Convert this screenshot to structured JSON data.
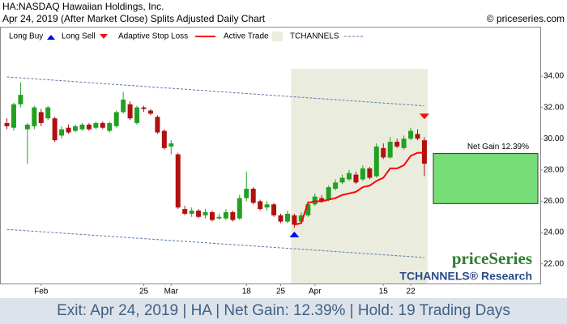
{
  "chart_data": {
    "type": "candlestick",
    "title": "HA:NASDAQ Hawaiian Holdings, Inc.",
    "subtitle": "Apr 24, 2019 (After Market Close)  Splits Adjusted Daily Chart",
    "source": "© priceseries.com",
    "legend": [
      "Long Buy",
      "Long Sell",
      "Adaptive Stop Loss",
      "Active Trade",
      "TCHANNELS"
    ],
    "watermark": "priceSeries",
    "brand": "TCHANNELS® Research",
    "footer": "Exit: Apr 24, 2019 | HA | Net Gain: 12.39% | Hold: 19 Trading Days",
    "categories": [
      null,
      null,
      null,
      null,
      null,
      "Feb",
      null,
      null,
      null,
      null,
      null,
      null,
      null,
      null,
      null,
      null,
      null,
      null,
      null,
      null,
      "25",
      null,
      null,
      null,
      "Mar",
      null,
      null,
      null,
      null,
      null,
      null,
      null,
      null,
      null,
      null,
      "18",
      null,
      null,
      null,
      null,
      "25",
      null,
      null,
      null,
      null,
      "Apr",
      null,
      null,
      null,
      null,
      null,
      null,
      null,
      null,
      null,
      "15",
      null,
      null,
      null,
      "22",
      null,
      null
    ],
    "open": [
      31.0,
      30.7,
      32.2,
      30.6,
      30.8,
      31.7,
      31.3,
      31.3,
      30.2,
      30.7,
      30.5,
      30.6,
      30.9,
      30.7,
      31.0,
      30.5,
      30.8,
      31.7,
      32.2,
      31.0,
      32.0,
      31.8,
      31.4,
      30.5,
      29.5,
      29.0,
      25.5,
      25.2,
      25.4,
      25.1,
      25.3,
      24.9,
      24.9,
      25.3,
      24.9,
      26.2,
      26.8,
      26.0,
      25.6,
      25.8,
      25.1,
      24.7,
      25.1,
      24.7,
      25.1,
      25.8,
      26.2,
      26.1,
      26.8,
      27.2,
      27.4,
      27.7,
      27.4,
      28.1,
      27.6,
      29.4,
      28.8,
      29.8,
      29.4,
      30.0,
      30.3,
      29.9
    ],
    "high": [
      31.3,
      32.3,
      33.6,
      31.0,
      32.1,
      31.9,
      32.1,
      31.4,
      30.8,
      30.9,
      30.9,
      31.0,
      31.0,
      31.1,
      31.1,
      31.1,
      31.8,
      33.0,
      32.4,
      32.1,
      32.1,
      31.9,
      31.5,
      30.6,
      29.9,
      29.1,
      25.7,
      25.6,
      25.5,
      25.5,
      25.4,
      25.2,
      25.5,
      25.4,
      26.4,
      27.9,
      26.9,
      26.1,
      26.0,
      25.9,
      25.2,
      25.4,
      25.2,
      25.3,
      26.0,
      26.5,
      26.4,
      27.0,
      27.4,
      27.7,
      28.0,
      27.9,
      28.3,
      28.2,
      29.7,
      29.7,
      30.1,
      30.0,
      30.2,
      30.7,
      30.6,
      30.1
    ],
    "low": [
      30.6,
      30.5,
      32.0,
      28.4,
      30.6,
      30.8,
      31.2,
      29.8,
      30.0,
      30.3,
      30.4,
      30.5,
      30.5,
      30.6,
      30.6,
      30.4,
      30.7,
      31.6,
      31.2,
      30.9,
      31.7,
      31.5,
      30.3,
      29.3,
      29.0,
      25.5,
      25.1,
      25.0,
      24.9,
      24.9,
      24.7,
      24.8,
      24.8,
      24.7,
      24.8,
      26.0,
      25.8,
      25.4,
      25.4,
      25.0,
      24.6,
      24.6,
      24.3,
      24.6,
      25.0,
      25.7,
      25.9,
      26.0,
      26.7,
      27.1,
      27.3,
      27.1,
      27.3,
      27.4,
      27.5,
      28.7,
      28.7,
      29.4,
      29.3,
      29.9,
      29.9,
      27.6
    ],
    "close": [
      30.8,
      32.2,
      32.8,
      30.9,
      32.0,
      31.0,
      32.0,
      29.9,
      30.6,
      30.4,
      30.8,
      30.9,
      30.6,
      31.0,
      30.7,
      31.0,
      31.7,
      32.5,
      31.3,
      32.0,
      31.9,
      31.6,
      30.4,
      29.4,
      29.7,
      25.6,
      25.2,
      25.4,
      25.0,
      25.3,
      24.8,
      25.0,
      25.3,
      24.8,
      26.2,
      26.8,
      25.9,
      25.5,
      25.8,
      25.1,
      24.7,
      25.2,
      24.5,
      25.1,
      25.8,
      26.3,
      26.0,
      26.9,
      27.2,
      27.5,
      27.8,
      27.2,
      28.1,
      27.5,
      29.5,
      28.8,
      29.8,
      29.5,
      30.0,
      30.5,
      30.0,
      28.4
    ],
    "up_color": "#22a022",
    "down_color": "#b01010",
    "stop_loss": {
      "color": "#ff0000",
      "values": [
        null,
        null,
        null,
        null,
        null,
        null,
        null,
        null,
        null,
        null,
        null,
        null,
        null,
        null,
        null,
        null,
        null,
        null,
        null,
        null,
        null,
        null,
        null,
        null,
        null,
        null,
        null,
        null,
        null,
        null,
        null,
        null,
        null,
        null,
        null,
        null,
        null,
        null,
        null,
        null,
        null,
        null,
        24.5,
        24.6,
        25.9,
        26.0,
        26.0,
        26.1,
        26.2,
        26.4,
        26.5,
        26.6,
        26.9,
        27.0,
        27.3,
        27.5,
        28.1,
        28.1,
        28.3,
        28.9,
        29.1,
        29.1
      ]
    },
    "active_trade": {
      "start": 42,
      "end": 61,
      "color": "#eaedde"
    },
    "long_buy": {
      "index": 42,
      "price": 23.9,
      "color": "#0000ee"
    },
    "long_sell": {
      "index": 61,
      "price": 31.4,
      "color": "#ee1111"
    },
    "channel": {
      "color": "#5a78a8",
      "start": 0,
      "end": 61,
      "upper": [
        33.95,
        32.1
      ],
      "lower": [
        24.2,
        22.4
      ]
    },
    "net_gain": {
      "label": "Net Gain 12.39%",
      "top": 29.05,
      "bottom": 25.85,
      "color": "#77dd77"
    },
    "ylim": [
      20.74,
      37.16
    ],
    "yticks": [
      {
        "value": 22,
        "label": "22.00"
      },
      {
        "value": 24,
        "label": "24.00"
      },
      {
        "value": 26,
        "label": "26.00"
      },
      {
        "value": 28,
        "label": "28.00"
      },
      {
        "value": 30,
        "label": "30.00"
      },
      {
        "value": 32,
        "label": "32.00"
      },
      {
        "value": 34,
        "label": "34.00"
      }
    ]
  }
}
